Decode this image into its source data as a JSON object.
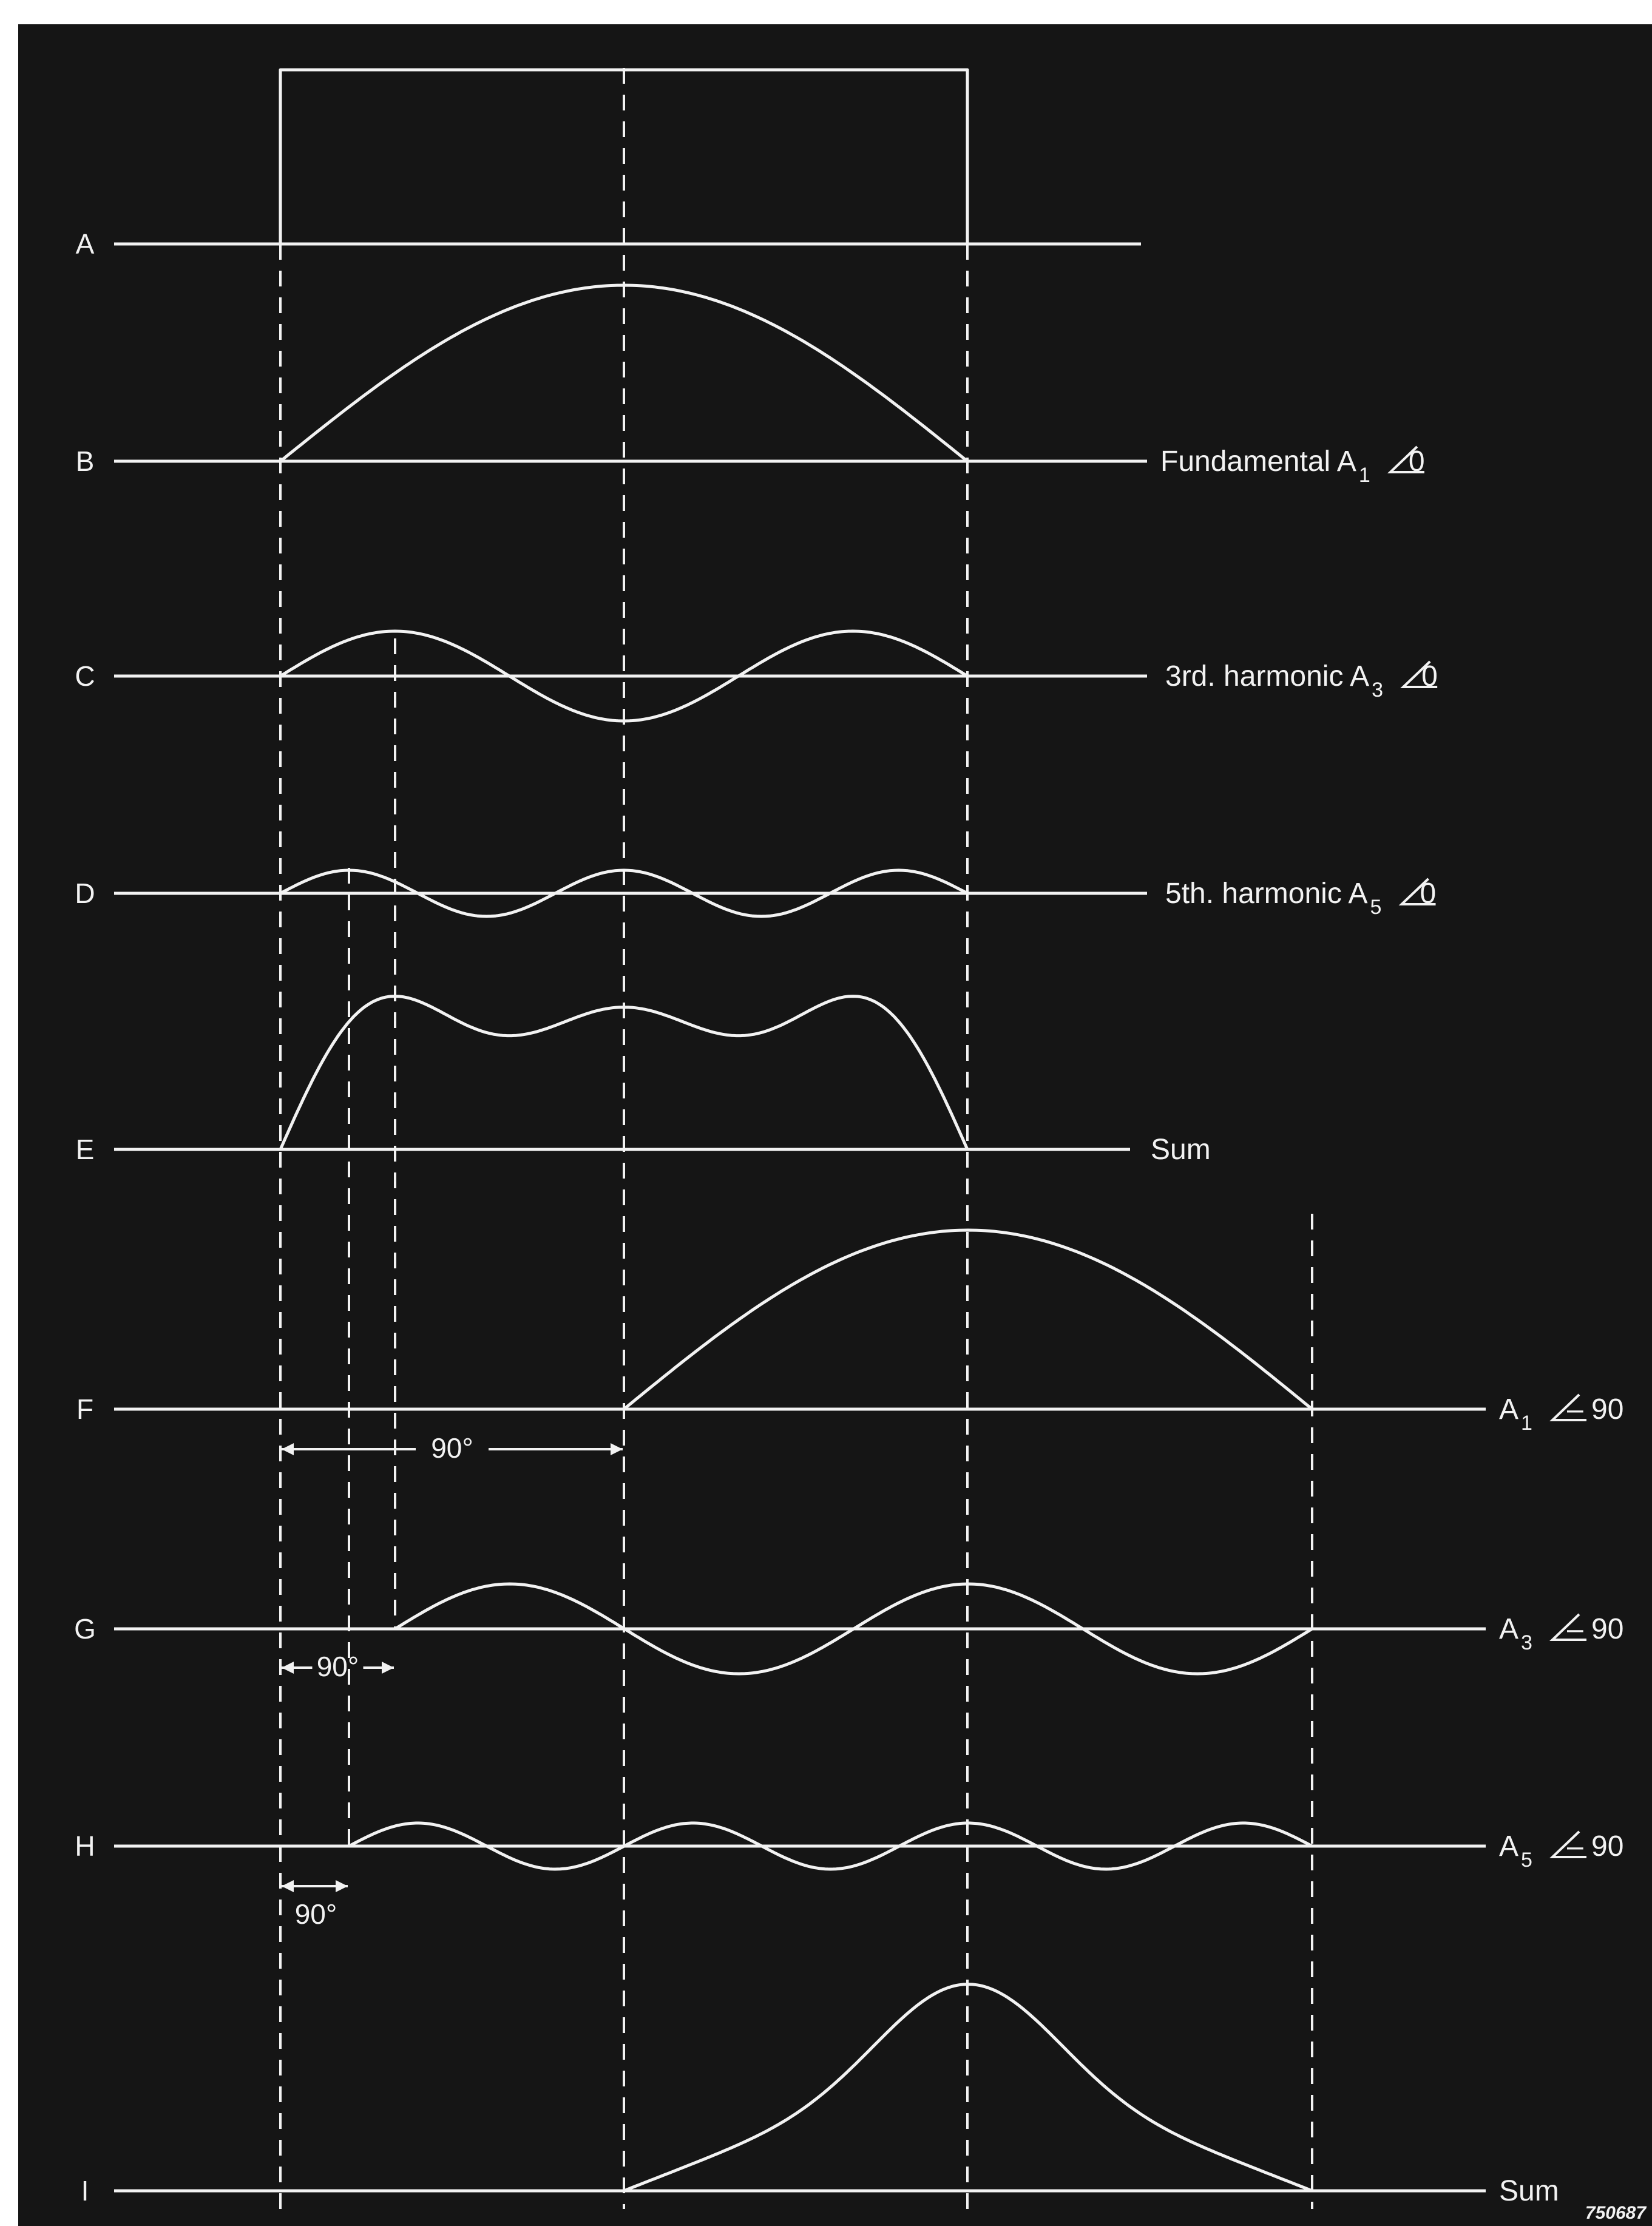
{
  "rows": [
    {
      "id": "A",
      "letter": "A",
      "label": null
    },
    {
      "id": "B",
      "letter": "B",
      "label": {
        "main": "Fundamental A",
        "sub": "1",
        "angle": "0"
      }
    },
    {
      "id": "C",
      "letter": "C",
      "label": {
        "main": "3rd. harmonic A",
        "sub": "3",
        "angle": "0"
      }
    },
    {
      "id": "D",
      "letter": "D",
      "label": {
        "main": "5th. harmonic A",
        "sub": "5",
        "angle": "0"
      }
    },
    {
      "id": "E",
      "letter": "E",
      "label": {
        "main": "Sum",
        "sub": "",
        "angle": ""
      }
    },
    {
      "id": "F",
      "letter": "F",
      "label": {
        "main": "A",
        "sub": "1",
        "angle": "– 90"
      }
    },
    {
      "id": "G",
      "letter": "G",
      "label": {
        "main": "A",
        "sub": "3",
        "angle": "– 90"
      }
    },
    {
      "id": "H",
      "letter": "H",
      "label": {
        "main": "A",
        "sub": "5",
        "angle": "– 90"
      }
    },
    {
      "id": "I",
      "letter": "I",
      "label": {
        "main": "Sum",
        "sub": "",
        "angle": ""
      }
    }
  ],
  "phase_markers": [
    {
      "id": "fundamental-shift",
      "text": "90°"
    },
    {
      "id": "third-shift",
      "text": "90°"
    },
    {
      "id": "fifth-shift",
      "text": "90°"
    }
  ],
  "figure_number": "750687",
  "colors": {
    "background": "#151515",
    "trace": "#f2f2f2",
    "border": "#ffffff"
  }
}
